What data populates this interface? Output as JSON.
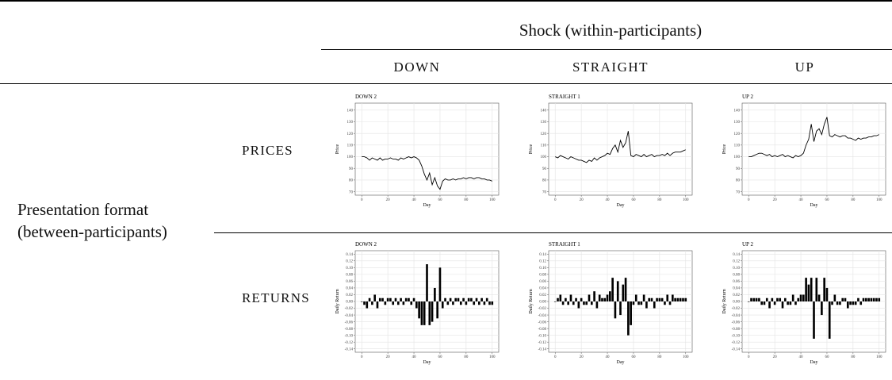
{
  "table": {
    "header": "Shock (within-participants)",
    "columns": [
      "DOWN",
      "STRAIGHT",
      "UP"
    ],
    "row_group": "Presentation format (between-participants)",
    "rows": [
      "PRICES",
      "RETURNS"
    ]
  },
  "chart_data": [
    {
      "type": "line",
      "title": "DOWN 2",
      "x_label": "Day",
      "y_label": "Price",
      "color": "#000000",
      "grid": true,
      "x": [
        0,
        2,
        4,
        6,
        8,
        10,
        12,
        14,
        16,
        18,
        20,
        22,
        24,
        26,
        28,
        30,
        32,
        34,
        36,
        38,
        40,
        42,
        44,
        46,
        48,
        50,
        52,
        54,
        56,
        58,
        60,
        62,
        64,
        66,
        68,
        70,
        72,
        74,
        76,
        78,
        80,
        82,
        84,
        86,
        88,
        90,
        92,
        94,
        96,
        98,
        100
      ],
      "values": [
        100,
        100,
        99,
        97,
        99,
        98,
        97,
        99,
        97,
        98,
        98,
        99,
        98,
        98,
        97,
        99,
        98,
        99,
        100,
        99,
        100,
        99,
        97,
        92,
        85,
        80,
        86,
        76,
        82,
        75,
        72,
        79,
        81,
        80,
        80,
        81,
        80,
        81,
        81,
        82,
        81,
        82,
        82,
        81,
        82,
        82,
        81,
        81,
        80,
        80,
        79
      ],
      "xlim": [
        -5,
        105
      ],
      "ylim": [
        67,
        146
      ],
      "xticks": [
        0,
        20,
        40,
        60,
        80,
        100
      ],
      "yticks": [
        70,
        80,
        90,
        100,
        110,
        120,
        130,
        140
      ]
    },
    {
      "type": "line",
      "title": "STRAIGHT 1",
      "x_label": "Day",
      "y_label": "Price",
      "color": "#000000",
      "grid": true,
      "x": [
        0,
        2,
        4,
        6,
        8,
        10,
        12,
        14,
        16,
        18,
        20,
        22,
        24,
        26,
        28,
        30,
        32,
        34,
        36,
        38,
        40,
        42,
        44,
        46,
        48,
        50,
        52,
        54,
        56,
        58,
        60,
        62,
        64,
        66,
        68,
        70,
        72,
        74,
        76,
        78,
        80,
        82,
        84,
        86,
        88,
        90,
        92,
        94,
        96,
        98,
        100
      ],
      "values": [
        100,
        99,
        101,
        100,
        99,
        98,
        100,
        99,
        98,
        97,
        97,
        96,
        95,
        97,
        96,
        99,
        97,
        99,
        100,
        101,
        103,
        102,
        107,
        110,
        104,
        114,
        108,
        112,
        122,
        101,
        100,
        102,
        101,
        100,
        102,
        100,
        101,
        102,
        100,
        101,
        101,
        102,
        101,
        103,
        101,
        103,
        104,
        104,
        104,
        105,
        106
      ],
      "xlim": [
        -5,
        105
      ],
      "ylim": [
        67,
        146
      ],
      "xticks": [
        0,
        20,
        40,
        60,
        80,
        100
      ],
      "yticks": [
        70,
        80,
        90,
        100,
        110,
        120,
        130,
        140
      ]
    },
    {
      "type": "line",
      "title": "UP 2",
      "x_label": "Day",
      "y_label": "Price",
      "color": "#000000",
      "grid": true,
      "x": [
        0,
        2,
        4,
        6,
        8,
        10,
        12,
        14,
        16,
        18,
        20,
        22,
        24,
        26,
        28,
        30,
        32,
        34,
        36,
        38,
        40,
        42,
        44,
        46,
        48,
        50,
        52,
        54,
        56,
        58,
        60,
        62,
        64,
        66,
        68,
        70,
        72,
        74,
        76,
        78,
        80,
        82,
        84,
        86,
        88,
        90,
        92,
        94,
        96,
        98,
        100
      ],
      "values": [
        100,
        100,
        101,
        102,
        103,
        103,
        102,
        101,
        102,
        100,
        101,
        100,
        101,
        102,
        100,
        101,
        100,
        99,
        101,
        100,
        101,
        103,
        110,
        115,
        128,
        113,
        122,
        124,
        119,
        128,
        134,
        118,
        117,
        119,
        118,
        117,
        118,
        118,
        116,
        116,
        115,
        114,
        116,
        115,
        116,
        116,
        117,
        117,
        118,
        118,
        119
      ],
      "xlim": [
        -5,
        105
      ],
      "ylim": [
        67,
        146
      ],
      "xticks": [
        0,
        20,
        40,
        60,
        80,
        100
      ],
      "yticks": [
        70,
        80,
        90,
        100,
        110,
        120,
        130,
        140
      ]
    },
    {
      "type": "bar",
      "title": "DOWN 2",
      "x_label": "Day",
      "y_label": "Daily Return",
      "color": "#000000",
      "grid": true,
      "x": [
        0,
        2,
        4,
        6,
        8,
        10,
        12,
        14,
        16,
        18,
        20,
        22,
        24,
        26,
        28,
        30,
        32,
        34,
        36,
        38,
        40,
        42,
        44,
        46,
        48,
        50,
        52,
        54,
        56,
        58,
        60,
        62,
        64,
        66,
        68,
        70,
        72,
        74,
        76,
        78,
        80,
        82,
        84,
        86,
        88,
        90,
        92,
        94,
        96,
        98,
        100
      ],
      "values": [
        0,
        -0.01,
        -0.02,
        0.01,
        -0.01,
        0.02,
        -0.02,
        0.01,
        0.01,
        -0.01,
        0.01,
        0.01,
        -0.01,
        0.01,
        -0.01,
        0.01,
        -0.01,
        0.01,
        0.01,
        -0.01,
        0.01,
        -0.02,
        -0.05,
        -0.07,
        -0.07,
        0.11,
        -0.07,
        -0.06,
        0.04,
        -0.05,
        0.1,
        -0.02,
        0.01,
        -0.01,
        0.01,
        -0.01,
        0.01,
        0.01,
        -0.01,
        0.01,
        -0.01,
        0.01,
        0.01,
        -0.01,
        0.01,
        -0.01,
        0.01,
        -0.01,
        0.01,
        -0.01,
        -0.01
      ],
      "xlim": [
        -5,
        105
      ],
      "ylim": [
        -0.15,
        0.15
      ],
      "xticks": [
        0,
        20,
        40,
        60,
        80,
        100
      ],
      "yticks": [
        0.14,
        0.12,
        {
          "value": 0.1,
          "label": "0.10"
        },
        0.08,
        0.06,
        0.04,
        0.02,
        {
          "value": 0,
          "label": "0.00"
        },
        -0.02,
        -0.04,
        -0.06,
        -0.08,
        {
          "value": -0.1,
          "label": "-0.10"
        },
        -0.12,
        -0.14
      ]
    },
    {
      "type": "bar",
      "title": "STRAIGHT 1",
      "x_label": "Day",
      "y_label": "Daily Return",
      "color": "#000000",
      "grid": true,
      "x": [
        0,
        2,
        4,
        6,
        8,
        10,
        12,
        14,
        16,
        18,
        20,
        22,
        24,
        26,
        28,
        30,
        32,
        34,
        36,
        38,
        40,
        42,
        44,
        46,
        48,
        50,
        52,
        54,
        56,
        58,
        60,
        62,
        64,
        66,
        68,
        70,
        72,
        74,
        76,
        78,
        80,
        82,
        84,
        86,
        88,
        90,
        92,
        94,
        96,
        98,
        100
      ],
      "values": [
        0,
        0.01,
        0.02,
        -0.01,
        0.01,
        -0.01,
        0.02,
        -0.01,
        0.01,
        -0.02,
        0.01,
        -0.01,
        -0.01,
        0.02,
        -0.01,
        0.03,
        -0.02,
        0.02,
        0.01,
        0.01,
        0.02,
        0.03,
        0.07,
        -0.05,
        0.06,
        -0.04,
        0.05,
        0.07,
        -0.1,
        -0.07,
        -0.01,
        0.02,
        -0.01,
        -0.01,
        0.02,
        -0.02,
        0.01,
        0.01,
        -0.02,
        0.01,
        0.01,
        0.01,
        -0.01,
        0.02,
        -0.01,
        0.02,
        0.01,
        0.01,
        0.01,
        0.01,
        0.01
      ],
      "xlim": [
        -5,
        105
      ],
      "ylim": [
        -0.15,
        0.15
      ],
      "xticks": [
        0,
        20,
        40,
        60,
        80,
        100
      ],
      "yticks": [
        0.14,
        0.12,
        {
          "value": 0.1,
          "label": "0.10"
        },
        0.08,
        0.06,
        0.04,
        0.02,
        {
          "value": 0,
          "label": "0.00"
        },
        -0.02,
        -0.04,
        -0.06,
        -0.08,
        {
          "value": -0.1,
          "label": "-0.10"
        },
        -0.12,
        -0.14
      ]
    },
    {
      "type": "bar",
      "title": "UP 2",
      "x_label": "Day",
      "y_label": "Daily Return",
      "color": "#000000",
      "grid": true,
      "x": [
        0,
        2,
        4,
        6,
        8,
        10,
        12,
        14,
        16,
        18,
        20,
        22,
        24,
        26,
        28,
        30,
        32,
        34,
        36,
        38,
        40,
        42,
        44,
        46,
        48,
        50,
        52,
        54,
        56,
        58,
        60,
        62,
        64,
        66,
        68,
        70,
        72,
        74,
        76,
        78,
        80,
        82,
        84,
        86,
        88,
        90,
        92,
        94,
        96,
        98,
        100
      ],
      "values": [
        0,
        0.01,
        0.01,
        0.01,
        0.01,
        -0.01,
        -0.01,
        0.01,
        -0.02,
        0.01,
        -0.01,
        0.01,
        0.01,
        -0.02,
        0.01,
        -0.01,
        -0.01,
        0.02,
        -0.01,
        0.01,
        0.02,
        0.02,
        0.07,
        0.05,
        0.07,
        -0.11,
        0.07,
        0.02,
        -0.04,
        0.07,
        0.04,
        -0.11,
        -0.01,
        0.02,
        -0.01,
        -0.01,
        0.01,
        0.01,
        -0.02,
        -0.01,
        -0.01,
        -0.01,
        0.01,
        -0.01,
        0.01,
        0.01,
        0.01,
        0.01,
        0.01,
        0.01,
        0.01
      ],
      "xlim": [
        -5,
        105
      ],
      "ylim": [
        -0.15,
        0.15
      ],
      "xticks": [
        0,
        20,
        40,
        60,
        80,
        100
      ],
      "yticks": [
        0.14,
        0.12,
        {
          "value": 0.1,
          "label": "0.10"
        },
        0.08,
        0.06,
        0.04,
        0.02,
        {
          "value": 0,
          "label": "0.00"
        },
        -0.02,
        -0.04,
        -0.06,
        -0.08,
        {
          "value": -0.1,
          "label": "-0.10"
        },
        -0.12,
        -0.14
      ]
    }
  ]
}
